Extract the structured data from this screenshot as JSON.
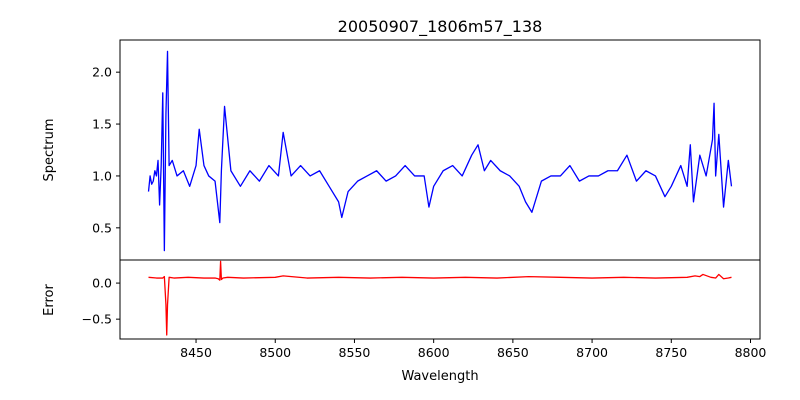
{
  "chart_data": [
    {
      "type": "line",
      "title": "20050907_1806m57_138",
      "xlabel": "",
      "ylabel": "Spectrum",
      "xlim": [
        8402,
        8806
      ],
      "ylim": [
        0.19,
        2.31
      ],
      "yticks": [
        0.5,
        1.0,
        1.5,
        2.0
      ],
      "ytick_labels": [
        "0.5",
        "1.0",
        "1.5",
        "2.0"
      ],
      "series": [
        {
          "color": "#0000ff",
          "x": [
            8420,
            8421,
            8422,
            8423,
            8424,
            8425,
            8426,
            8427,
            8428,
            8429,
            8430,
            8431,
            8432,
            8433,
            8435,
            8438,
            8442,
            8446,
            8450,
            8452,
            8455,
            8458,
            8462,
            8465,
            8466,
            8468,
            8472,
            8478,
            8484,
            8490,
            8496,
            8502,
            8505,
            8510,
            8516,
            8522,
            8528,
            8534,
            8540,
            8542,
            8546,
            8552,
            8558,
            8564,
            8570,
            8576,
            8582,
            8588,
            8594,
            8597,
            8600,
            8606,
            8612,
            8618,
            8624,
            8628,
            8632,
            8636,
            8642,
            8648,
            8654,
            8658,
            8662,
            8668,
            8674,
            8680,
            8686,
            8692,
            8698,
            8704,
            8710,
            8716,
            8722,
            8728,
            8734,
            8740,
            8746,
            8750,
            8756,
            8760,
            8762,
            8764,
            8768,
            8772,
            8776,
            8777,
            8778,
            8780,
            8783,
            8786,
            8788
          ],
          "y": [
            0.85,
            1.0,
            0.92,
            0.95,
            1.05,
            1.0,
            1.15,
            0.72,
            1.1,
            1.8,
            0.28,
            1.6,
            2.2,
            1.1,
            1.15,
            1.0,
            1.05,
            0.9,
            1.1,
            1.45,
            1.1,
            1.0,
            0.95,
            0.55,
            1.05,
            1.67,
            1.05,
            0.9,
            1.05,
            0.95,
            1.1,
            1.0,
            1.42,
            1.0,
            1.1,
            1.0,
            1.05,
            0.9,
            0.75,
            0.6,
            0.85,
            0.95,
            1.0,
            1.05,
            0.95,
            1.0,
            1.1,
            1.0,
            1.0,
            0.7,
            0.9,
            1.05,
            1.1,
            1.0,
            1.2,
            1.3,
            1.05,
            1.15,
            1.05,
            1.0,
            0.9,
            0.75,
            0.65,
            0.95,
            1.0,
            1.0,
            1.1,
            0.95,
            1.0,
            1.0,
            1.05,
            1.05,
            1.2,
            0.95,
            1.05,
            1.0,
            0.8,
            0.9,
            1.1,
            0.9,
            1.3,
            0.75,
            1.2,
            1.0,
            1.35,
            1.7,
            1.0,
            1.4,
            0.7,
            1.15,
            0.9
          ]
        }
      ]
    },
    {
      "type": "line",
      "title": "",
      "xlabel": "Wavelength",
      "ylabel": "Error",
      "xlim": [
        8402,
        8806
      ],
      "ylim": [
        -0.775,
        0.32
      ],
      "xticks": [
        8450,
        8500,
        8550,
        8600,
        8650,
        8700,
        8750,
        8800
      ],
      "xtick_labels": [
        "8450",
        "8500",
        "8550",
        "8600",
        "8650",
        "8700",
        "8750",
        "8800"
      ],
      "yticks": [
        -0.5,
        0.0
      ],
      "ytick_labels": [
        "−0.5",
        "0.0"
      ],
      "series": [
        {
          "color": "#ff0000",
          "x": [
            8420,
            8425,
            8429,
            8430,
            8431,
            8431.5,
            8432,
            8433,
            8436,
            8445,
            8455,
            8462,
            8464,
            8465,
            8465.5,
            8466,
            8467,
            8470,
            8480,
            8500,
            8505,
            8520,
            8540,
            8560,
            8580,
            8600,
            8620,
            8640,
            8660,
            8680,
            8700,
            8720,
            8740,
            8760,
            8765,
            8768,
            8770,
            8775,
            8778,
            8780,
            8783,
            8786,
            8788
          ],
          "y": [
            0.08,
            0.07,
            0.07,
            0.09,
            -0.3,
            -0.72,
            -0.3,
            0.08,
            0.07,
            0.08,
            0.07,
            0.07,
            0.06,
            0.04,
            0.3,
            0.05,
            0.07,
            0.08,
            0.07,
            0.08,
            0.1,
            0.07,
            0.08,
            0.07,
            0.08,
            0.07,
            0.08,
            0.07,
            0.09,
            0.08,
            0.07,
            0.08,
            0.07,
            0.08,
            0.1,
            0.09,
            0.12,
            0.08,
            0.07,
            0.12,
            0.06,
            0.07,
            0.08
          ]
        }
      ]
    }
  ]
}
